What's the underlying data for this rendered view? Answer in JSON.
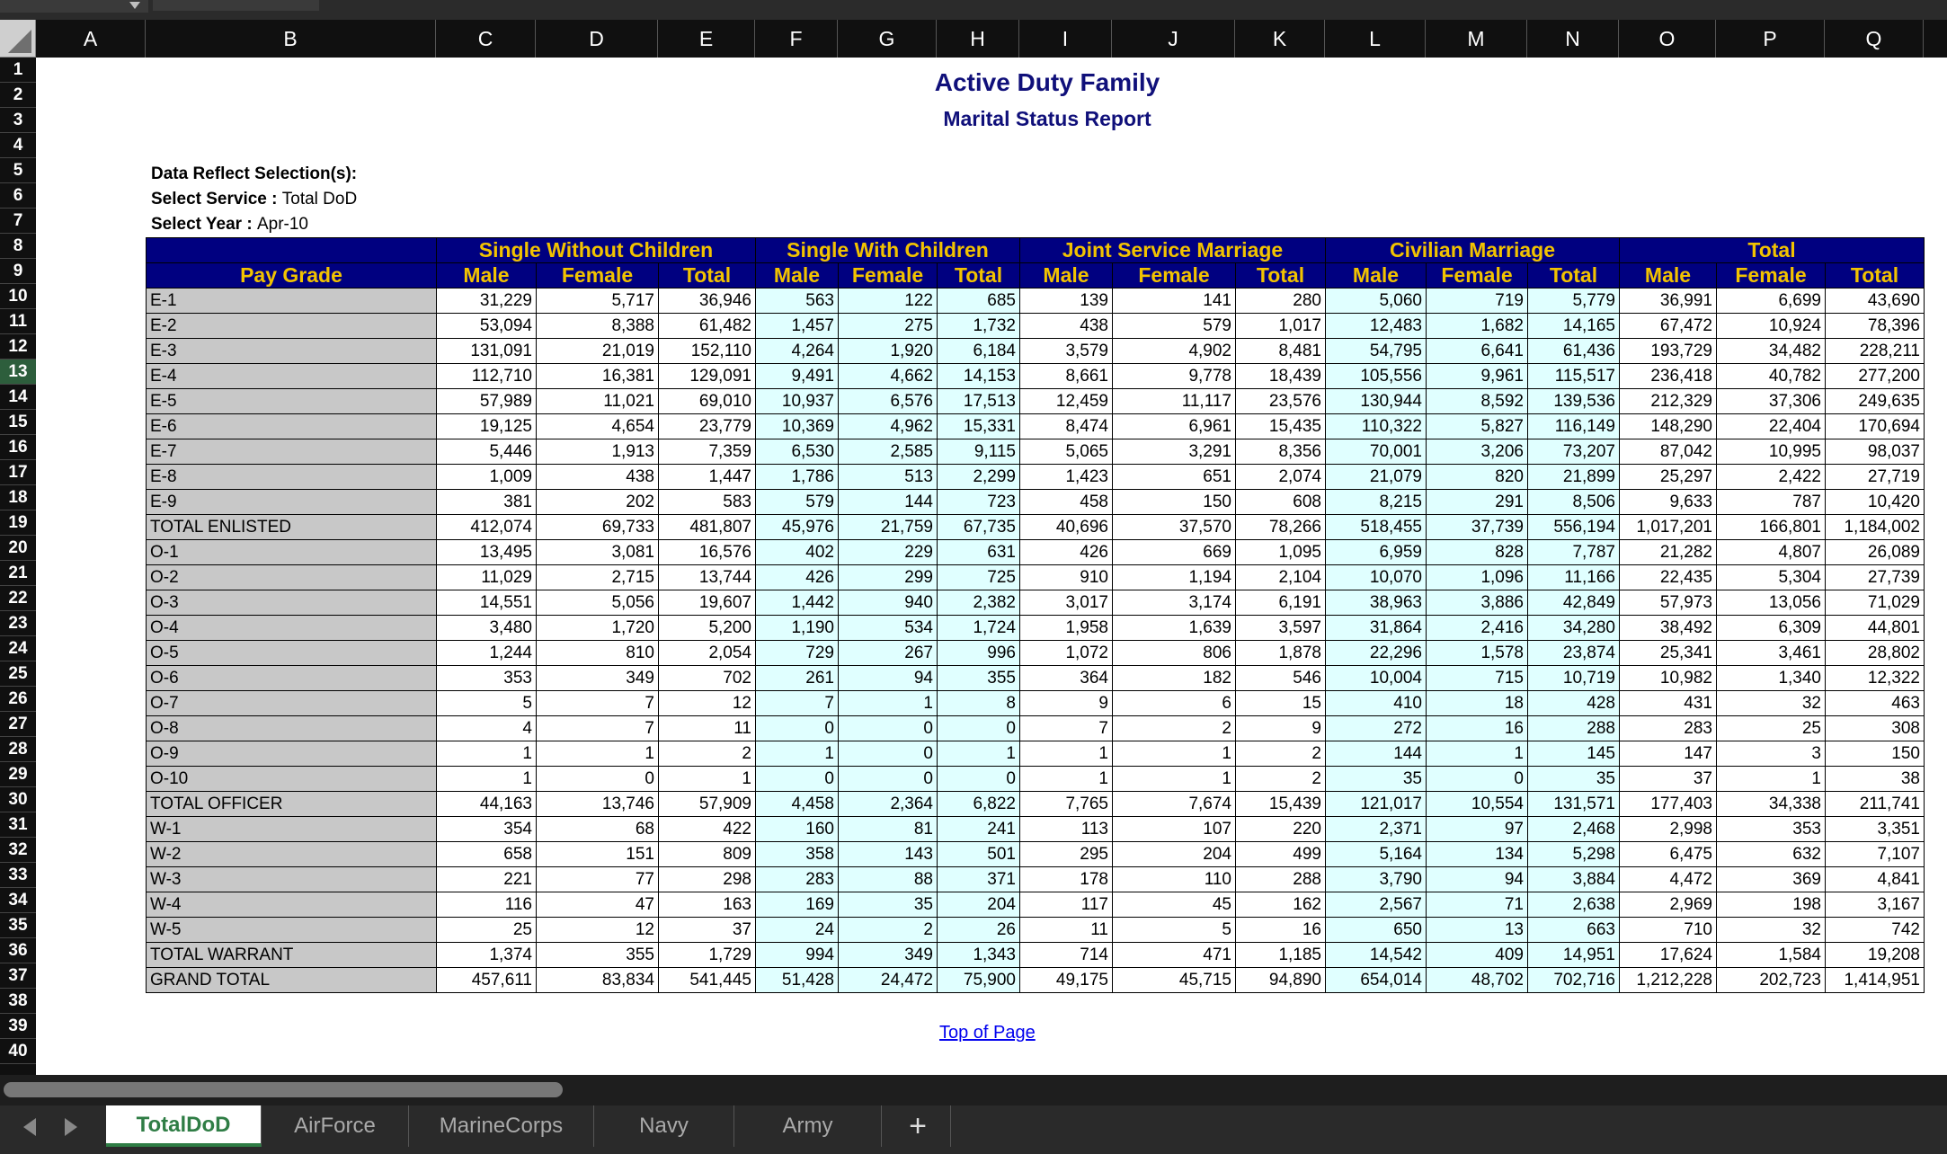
{
  "columns": [
    "A",
    "B",
    "C",
    "D",
    "E",
    "F",
    "G",
    "H",
    "I",
    "J",
    "K",
    "L",
    "M",
    "N",
    "O",
    "P",
    "Q"
  ],
  "rows": [
    "1",
    "2",
    "3",
    "4",
    "5",
    "6",
    "7",
    "8",
    "9",
    "10",
    "11",
    "12",
    "13",
    "14",
    "15",
    "16",
    "17",
    "18",
    "19",
    "20",
    "21",
    "22",
    "23",
    "24",
    "25",
    "26",
    "27",
    "28",
    "29",
    "30",
    "31",
    "32",
    "33",
    "34",
    "35",
    "36",
    "37",
    "38",
    "39",
    "40"
  ],
  "selected_row": "13",
  "report": {
    "title": "Active Duty Family",
    "subtitle": "Marital Status Report",
    "selections_label": "Data Reflect Selection(s):",
    "service_label": "Select Service : ",
    "service_value": "Total DoD",
    "year_label": "Select Year : ",
    "year_value": "Apr-10",
    "top_link": "Top of Page"
  },
  "table": {
    "groups": [
      "Single Without Children",
      "Single With Children",
      "Joint Service Marriage",
      "Civilian Marriage",
      "Total"
    ],
    "pay_grade_header": "Pay Grade",
    "subheaders": [
      "Male",
      "Female",
      "Total",
      "Male",
      "Female",
      "Total",
      "Male",
      "Female",
      "Total",
      "Male",
      "Female",
      "Total",
      "Male",
      "Female",
      "Total"
    ],
    "rows": [
      [
        "E-1",
        "31,229",
        "5,717",
        "36,946",
        "563",
        "122",
        "685",
        "139",
        "141",
        "280",
        "5,060",
        "719",
        "5,779",
        "36,991",
        "6,699",
        "43,690"
      ],
      [
        "E-2",
        "53,094",
        "8,388",
        "61,482",
        "1,457",
        "275",
        "1,732",
        "438",
        "579",
        "1,017",
        "12,483",
        "1,682",
        "14,165",
        "67,472",
        "10,924",
        "78,396"
      ],
      [
        "E-3",
        "131,091",
        "21,019",
        "152,110",
        "4,264",
        "1,920",
        "6,184",
        "3,579",
        "4,902",
        "8,481",
        "54,795",
        "6,641",
        "61,436",
        "193,729",
        "34,482",
        "228,211"
      ],
      [
        "E-4",
        "112,710",
        "16,381",
        "129,091",
        "9,491",
        "4,662",
        "14,153",
        "8,661",
        "9,778",
        "18,439",
        "105,556",
        "9,961",
        "115,517",
        "236,418",
        "40,782",
        "277,200"
      ],
      [
        "E-5",
        "57,989",
        "11,021",
        "69,010",
        "10,937",
        "6,576",
        "17,513",
        "12,459",
        "11,117",
        "23,576",
        "130,944",
        "8,592",
        "139,536",
        "212,329",
        "37,306",
        "249,635"
      ],
      [
        "E-6",
        "19,125",
        "4,654",
        "23,779",
        "10,369",
        "4,962",
        "15,331",
        "8,474",
        "6,961",
        "15,435",
        "110,322",
        "5,827",
        "116,149",
        "148,290",
        "22,404",
        "170,694"
      ],
      [
        "E-7",
        "5,446",
        "1,913",
        "7,359",
        "6,530",
        "2,585",
        "9,115",
        "5,065",
        "3,291",
        "8,356",
        "70,001",
        "3,206",
        "73,207",
        "87,042",
        "10,995",
        "98,037"
      ],
      [
        "E-8",
        "1,009",
        "438",
        "1,447",
        "1,786",
        "513",
        "2,299",
        "1,423",
        "651",
        "2,074",
        "21,079",
        "820",
        "21,899",
        "25,297",
        "2,422",
        "27,719"
      ],
      [
        "E-9",
        "381",
        "202",
        "583",
        "579",
        "144",
        "723",
        "458",
        "150",
        "608",
        "8,215",
        "291",
        "8,506",
        "9,633",
        "787",
        "10,420"
      ],
      [
        "TOTAL ENLISTED",
        "412,074",
        "69,733",
        "481,807",
        "45,976",
        "21,759",
        "67,735",
        "40,696",
        "37,570",
        "78,266",
        "518,455",
        "37,739",
        "556,194",
        "1,017,201",
        "166,801",
        "1,184,002"
      ],
      [
        "O-1",
        "13,495",
        "3,081",
        "16,576",
        "402",
        "229",
        "631",
        "426",
        "669",
        "1,095",
        "6,959",
        "828",
        "7,787",
        "21,282",
        "4,807",
        "26,089"
      ],
      [
        "O-2",
        "11,029",
        "2,715",
        "13,744",
        "426",
        "299",
        "725",
        "910",
        "1,194",
        "2,104",
        "10,070",
        "1,096",
        "11,166",
        "22,435",
        "5,304",
        "27,739"
      ],
      [
        "O-3",
        "14,551",
        "5,056",
        "19,607",
        "1,442",
        "940",
        "2,382",
        "3,017",
        "3,174",
        "6,191",
        "38,963",
        "3,886",
        "42,849",
        "57,973",
        "13,056",
        "71,029"
      ],
      [
        "O-4",
        "3,480",
        "1,720",
        "5,200",
        "1,190",
        "534",
        "1,724",
        "1,958",
        "1,639",
        "3,597",
        "31,864",
        "2,416",
        "34,280",
        "38,492",
        "6,309",
        "44,801"
      ],
      [
        "O-5",
        "1,244",
        "810",
        "2,054",
        "729",
        "267",
        "996",
        "1,072",
        "806",
        "1,878",
        "22,296",
        "1,578",
        "23,874",
        "25,341",
        "3,461",
        "28,802"
      ],
      [
        "O-6",
        "353",
        "349",
        "702",
        "261",
        "94",
        "355",
        "364",
        "182",
        "546",
        "10,004",
        "715",
        "10,719",
        "10,982",
        "1,340",
        "12,322"
      ],
      [
        "O-7",
        "5",
        "7",
        "12",
        "7",
        "1",
        "8",
        "9",
        "6",
        "15",
        "410",
        "18",
        "428",
        "431",
        "32",
        "463"
      ],
      [
        "O-8",
        "4",
        "7",
        "11",
        "0",
        "0",
        "0",
        "7",
        "2",
        "9",
        "272",
        "16",
        "288",
        "283",
        "25",
        "308"
      ],
      [
        "O-9",
        "1",
        "1",
        "2",
        "1",
        "0",
        "1",
        "1",
        "1",
        "2",
        "144",
        "1",
        "145",
        "147",
        "3",
        "150"
      ],
      [
        "O-10",
        "1",
        "0",
        "1",
        "0",
        "0",
        "0",
        "1",
        "1",
        "2",
        "35",
        "0",
        "35",
        "37",
        "1",
        "38"
      ],
      [
        "TOTAL OFFICER",
        "44,163",
        "13,746",
        "57,909",
        "4,458",
        "2,364",
        "6,822",
        "7,765",
        "7,674",
        "15,439",
        "121,017",
        "10,554",
        "131,571",
        "177,403",
        "34,338",
        "211,741"
      ],
      [
        "W-1",
        "354",
        "68",
        "422",
        "160",
        "81",
        "241",
        "113",
        "107",
        "220",
        "2,371",
        "97",
        "2,468",
        "2,998",
        "353",
        "3,351"
      ],
      [
        "W-2",
        "658",
        "151",
        "809",
        "358",
        "143",
        "501",
        "295",
        "204",
        "499",
        "5,164",
        "134",
        "5,298",
        "6,475",
        "632",
        "7,107"
      ],
      [
        "W-3",
        "221",
        "77",
        "298",
        "283",
        "88",
        "371",
        "178",
        "110",
        "288",
        "3,790",
        "94",
        "3,884",
        "4,472",
        "369",
        "4,841"
      ],
      [
        "W-4",
        "116",
        "47",
        "163",
        "169",
        "35",
        "204",
        "117",
        "45",
        "162",
        "2,567",
        "71",
        "2,638",
        "2,969",
        "198",
        "3,167"
      ],
      [
        "W-5",
        "25",
        "12",
        "37",
        "24",
        "2",
        "26",
        "11",
        "5",
        "16",
        "650",
        "13",
        "663",
        "710",
        "32",
        "742"
      ],
      [
        "TOTAL WARRANT",
        "1,374",
        "355",
        "1,729",
        "994",
        "349",
        "1,343",
        "714",
        "471",
        "1,185",
        "14,542",
        "409",
        "14,951",
        "17,624",
        "1,584",
        "19,208"
      ],
      [
        "GRAND TOTAL",
        "457,611",
        "83,834",
        "541,445",
        "51,428",
        "24,472",
        "75,900",
        "49,175",
        "45,715",
        "94,890",
        "654,014",
        "48,702",
        "702,716",
        "1,212,228",
        "202,723",
        "1,414,951"
      ]
    ]
  },
  "tabs": [
    "TotalDoD",
    "AirForce",
    "MarineCorps",
    "Navy",
    "Army"
  ],
  "active_tab": "TotalDoD",
  "add_sheet_label": "+"
}
